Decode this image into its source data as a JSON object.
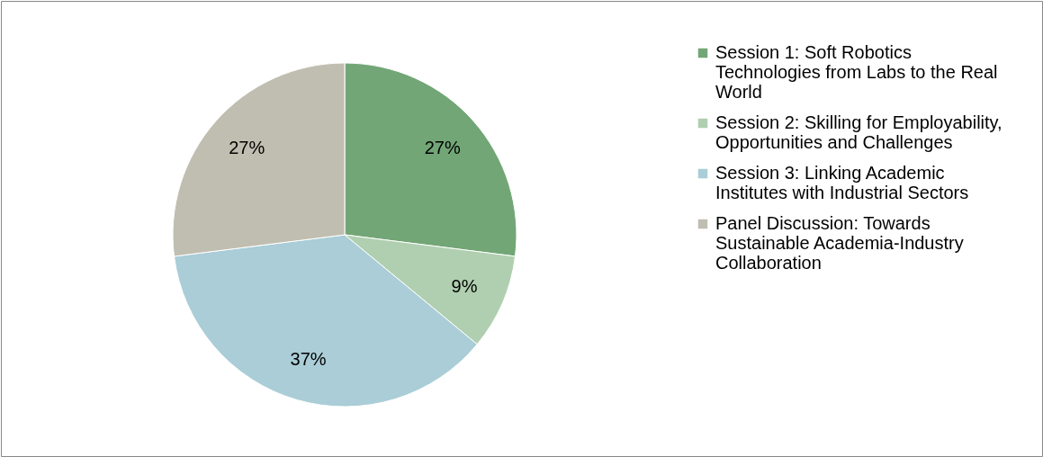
{
  "chart_data": {
    "type": "pie",
    "categories": [
      "Session 1: Soft Robotics Technologies from Labs to the Real World",
      "Session 2: Skilling for Employability, Opportunities and Challenges",
      "Session 3: Linking Academic Institutes with Industrial Sectors",
      "Panel Discussion: Towards Sustainable Academia-Industry Collaboration"
    ],
    "values": [
      27,
      9,
      37,
      27
    ],
    "colors": [
      "#72a676",
      "#b0cfb0",
      "#aacdd7",
      "#c0beb0"
    ],
    "value_labels": [
      "27%",
      "9%",
      "37%",
      "27%"
    ],
    "legend": "right"
  }
}
